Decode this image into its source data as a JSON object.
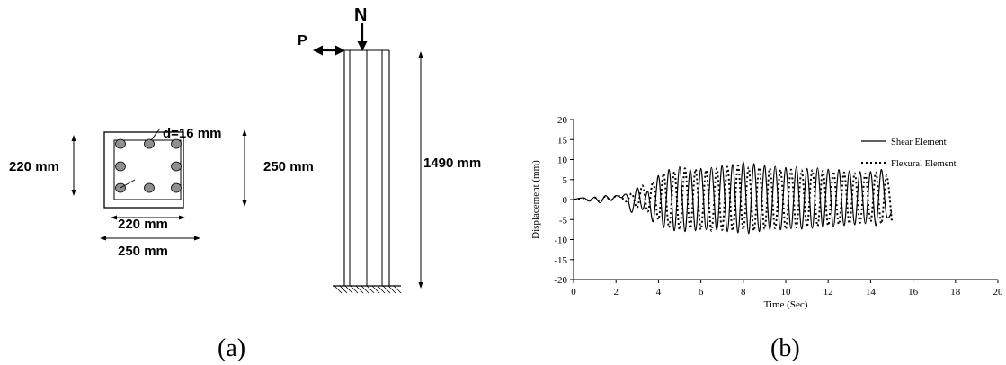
{
  "figure_a": {
    "caption": "(a)",
    "section": {
      "bar_label": "d=16 mm",
      "inner_height": "220 mm",
      "inner_width": "220 mm",
      "outer_width": "250 mm",
      "outer_height": "250 mm"
    },
    "column": {
      "load_lateral": "P",
      "load_axial": "N",
      "height": "1490 mm"
    }
  },
  "figure_b": {
    "caption": "(b)"
  },
  "chart_data": {
    "type": "line",
    "title": "",
    "xlabel": "Time (Sec)",
    "ylabel": "Displacement (mm)",
    "xlim": [
      0,
      20
    ],
    "ylim": [
      -20,
      20
    ],
    "xticks": [
      0,
      2,
      4,
      6,
      8,
      10,
      12,
      14,
      16,
      18,
      20
    ],
    "yticks": [
      20,
      15,
      10,
      5,
      0,
      -5,
      -10,
      -15,
      -20
    ],
    "legend_position": "top-right",
    "series": [
      {
        "name": "Shear Element",
        "style": "solid",
        "x": [
          0,
          0.25,
          0.5,
          0.75,
          1,
          1.25,
          1.5,
          1.75,
          2,
          2.25,
          2.5,
          2.75,
          3,
          3.25,
          3.5,
          3.75,
          4,
          4.25,
          4.5,
          4.75,
          5,
          5.25,
          5.5,
          5.75,
          6,
          6.25,
          6.5,
          6.75,
          7,
          7.25,
          7.5,
          7.75,
          8,
          8.25,
          8.5,
          8.75,
          9,
          9.25,
          9.5,
          9.75,
          10,
          10.25,
          10.5,
          10.75,
          11,
          11.25,
          11.5,
          11.75,
          12,
          12.25,
          12.5,
          12.75,
          13,
          13.25,
          13.5,
          13.75,
          14,
          14.25,
          14.5,
          14.75,
          15
        ],
        "y": [
          0,
          0.3,
          0.4,
          -0.4,
          0.6,
          -0.8,
          1.0,
          -0.2,
          1.0,
          0.5,
          1.2,
          -3.2,
          3.0,
          -2.5,
          2.0,
          -5.5,
          6.0,
          -7.0,
          7.5,
          -7.8,
          8.2,
          -8.0,
          7.5,
          -7.8,
          7.8,
          -7.5,
          8.0,
          -7.6,
          8.5,
          -8.0,
          8.8,
          -8.3,
          9.5,
          -8.5,
          9.0,
          -8.0,
          8.5,
          -7.5,
          8.3,
          -7.6,
          8.0,
          -7.3,
          8.2,
          -7.4,
          7.8,
          -7.2,
          7.9,
          -7.0,
          7.6,
          -6.8,
          7.5,
          -6.5,
          7.2,
          -6.3,
          7.0,
          -6.0,
          7.0,
          -6.5,
          7.5,
          -4.0,
          -3.0
        ]
      },
      {
        "name": "Flexural Element",
        "style": "dotted",
        "x": [
          0,
          0.25,
          0.5,
          0.75,
          1,
          1.25,
          1.5,
          1.75,
          2,
          2.25,
          2.5,
          2.75,
          3,
          3.25,
          3.5,
          3.75,
          4,
          4.25,
          4.5,
          4.75,
          5,
          5.25,
          5.5,
          5.75,
          6,
          6.25,
          6.5,
          6.75,
          7,
          7.25,
          7.5,
          7.75,
          8,
          8.25,
          8.5,
          8.75,
          9,
          9.25,
          9.5,
          9.75,
          10,
          10.25,
          10.5,
          10.75,
          11,
          11.25,
          11.5,
          11.75,
          12,
          12.25,
          12.5,
          12.75,
          13,
          13.25,
          13.5,
          13.75,
          14,
          14.25,
          14.5,
          14.75,
          15
        ],
        "y": [
          0,
          0.2,
          0.3,
          -0.3,
          0.5,
          -0.6,
          0.8,
          -0.2,
          0.9,
          0.6,
          -0.5,
          1.5,
          -2.0,
          3.5,
          -3.0,
          4.5,
          -5.0,
          6.5,
          -7.0,
          7.0,
          -7.5,
          7.8,
          -7.2,
          7.6,
          -7.5,
          7.4,
          -7.8,
          7.8,
          -7.6,
          8.2,
          -7.8,
          8.5,
          -7.5,
          8.0,
          -7.8,
          8.0,
          -7.3,
          7.8,
          -7.2,
          7.5,
          -7.4,
          7.5,
          -7.0,
          7.3,
          -6.8,
          7.4,
          -6.6,
          7.2,
          -6.5,
          7.0,
          -6.2,
          6.8,
          -6.0,
          6.6,
          -5.8,
          6.5,
          -5.5,
          6.8,
          -6.0,
          6.0,
          -5.5
        ]
      }
    ]
  }
}
